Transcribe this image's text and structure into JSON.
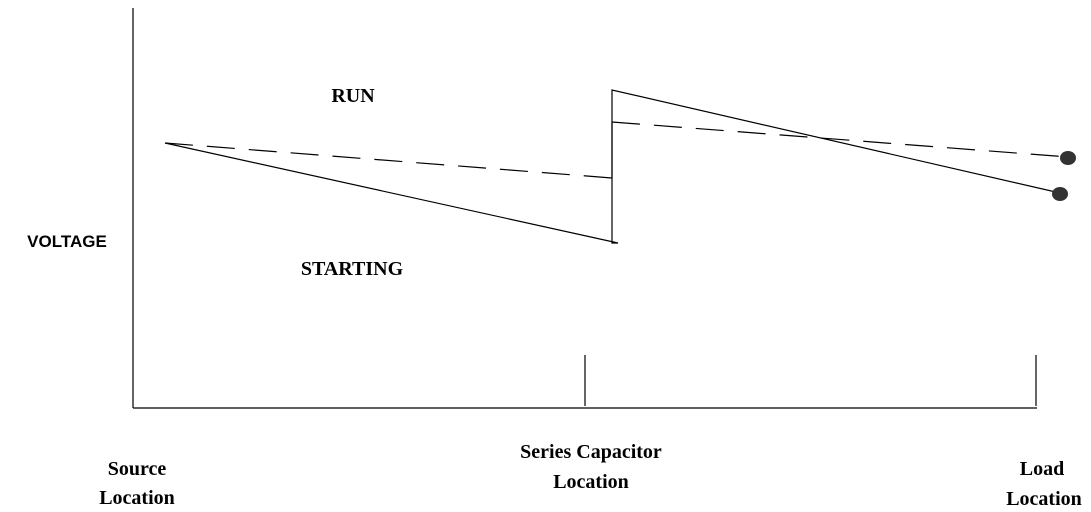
{
  "y_axis_label": "VOLTAGE",
  "curve_labels": {
    "run": "RUN",
    "starting": "STARTING"
  },
  "x_labels": [
    {
      "lines": [
        "Source",
        "Location"
      ]
    },
    {
      "lines": [
        "Series Capacitor",
        "Location"
      ]
    },
    {
      "lines": [
        "Load",
        "Location"
      ]
    }
  ]
}
